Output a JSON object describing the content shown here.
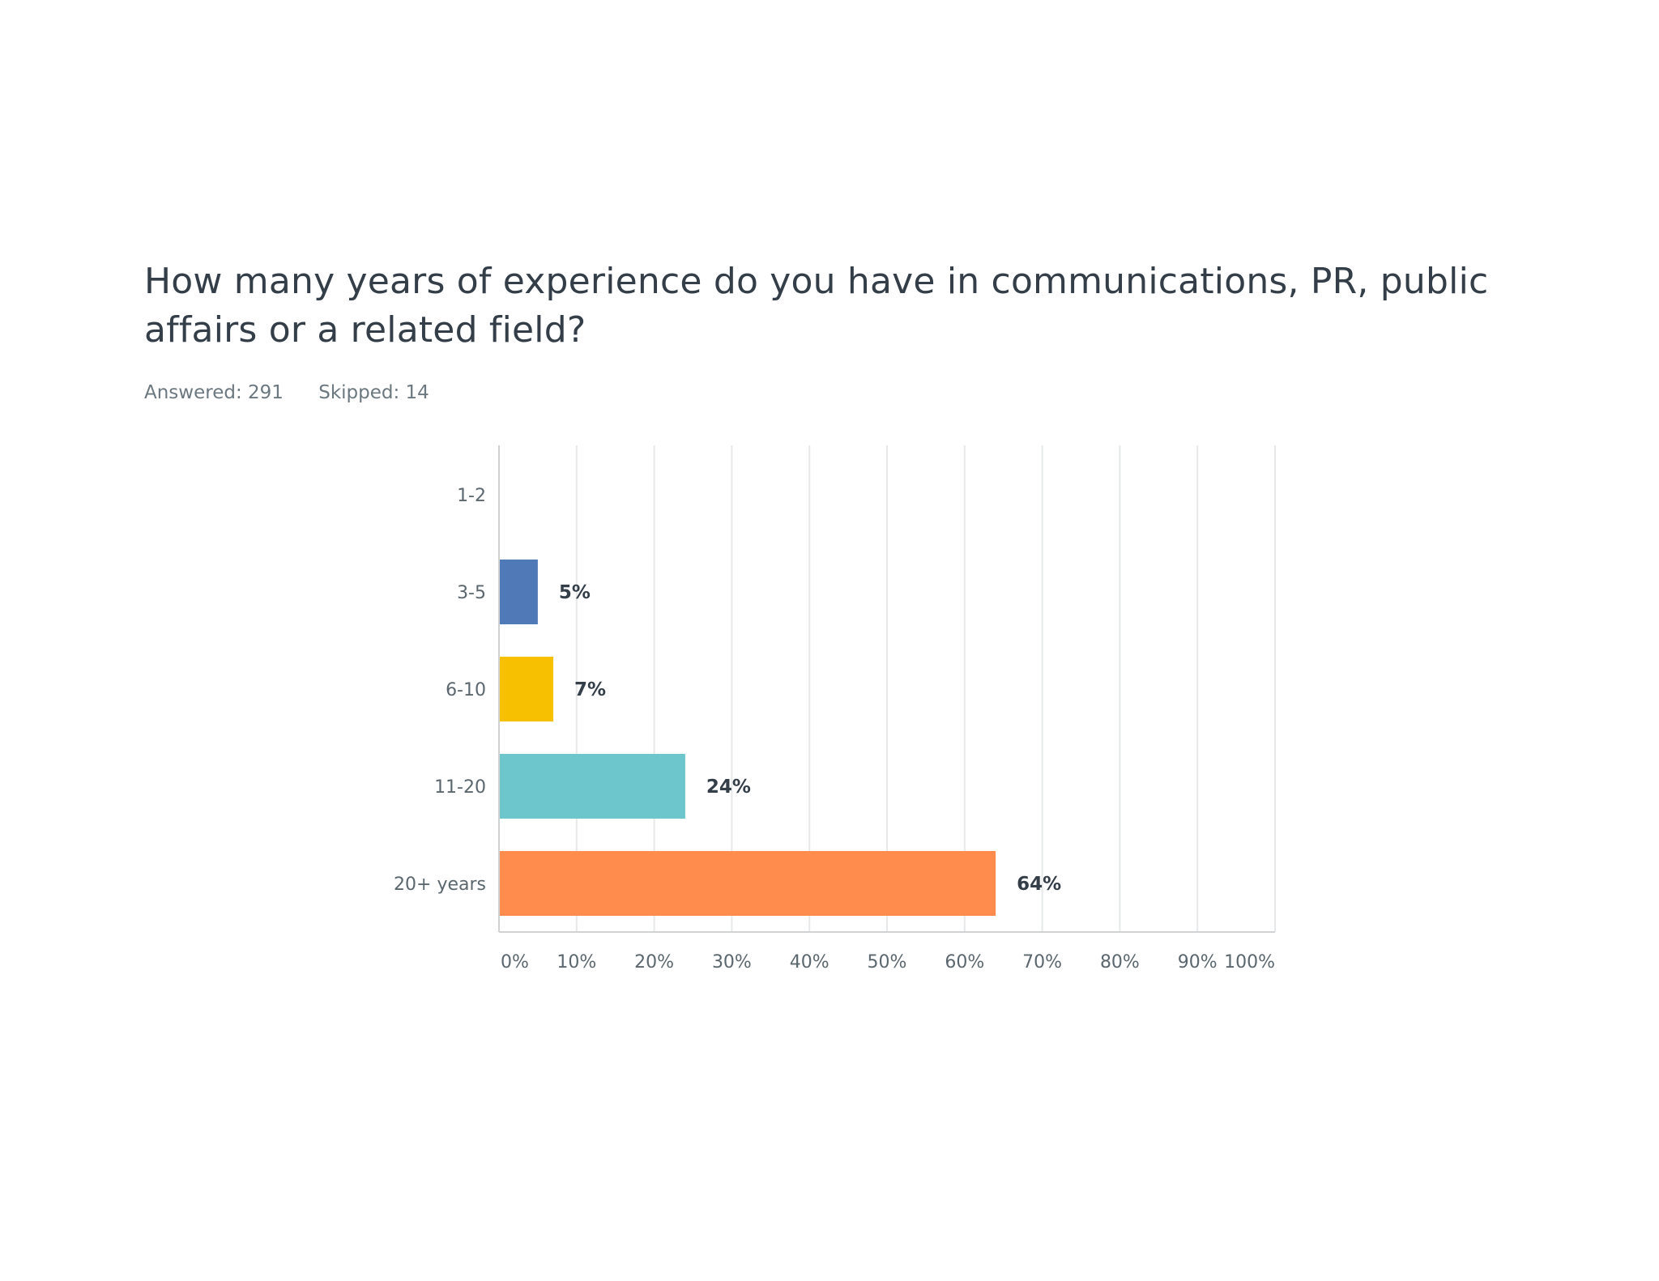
{
  "survey": {
    "question": "How many years of experience do you have in communications, PR, public affairs or a related field?",
    "answered": "Answered: 291",
    "skipped": "Skipped: 14"
  },
  "chart_data": {
    "type": "bar",
    "orientation": "horizontal",
    "categories": [
      "1-2",
      "3-5",
      "6-10",
      "11-20",
      "20+ years"
    ],
    "values": [
      0,
      5,
      7,
      24,
      64
    ],
    "value_labels": [
      "",
      "5%",
      "7%",
      "24%",
      "64%"
    ],
    "colors": [
      "#5079b8",
      "#5079b8",
      "#f7c000",
      "#6cc6cc",
      "#ff8b4d"
    ],
    "xlim": [
      0,
      100
    ],
    "xticks": [
      "0%",
      "10%",
      "20%",
      "30%",
      "40%",
      "50%",
      "60%",
      "70%",
      "80%",
      "90%",
      "100%"
    ],
    "grid": true,
    "title": "",
    "xlabel": "",
    "ylabel": ""
  }
}
